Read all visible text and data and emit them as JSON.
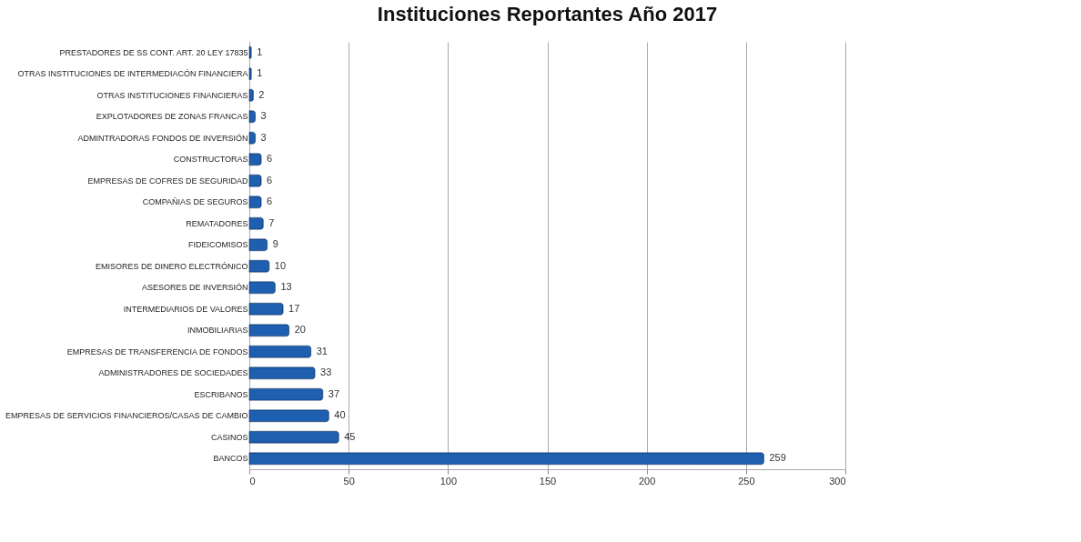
{
  "chart_data": {
    "type": "bar",
    "orientation": "horizontal",
    "title": "Instituciones Reportantes Año 2017",
    "categories": [
      "PRESTADORES DE SS CONT. ART. 20 LEY 17835",
      "OTRAS INSTITUCIONES DE INTERMEDIACÓN FINANCIERA",
      "OTRAS INSTITUCIONES FINANCIERAS",
      "EXPLOTADORES DE ZONAS FRANCAS",
      "ADMINTRADORAS FONDOS DE INVERSIÓN",
      "CONSTRUCTORAS",
      "EMPRESAS DE COFRES DE SEGURIDAD",
      "COMPAÑIAS DE SEGUROS",
      "REMATADORES",
      "FIDEICOMISOS",
      "EMISORES DE DINERO ELECTRÓNICO",
      "ASESORES DE INVERSIÓN",
      "INTERMEDIARIOS DE VALORES",
      "INMOBILIARIAS",
      "EMPRESAS DE TRANSFERENCIA DE FONDOS",
      "ADMINISTRADORES DE SOCIEDADES",
      "ESCRIBANOS",
      "EMPRESAS DE SERVICIOS FINANCIEROS/CASAS DE CAMBIO",
      "CASINOS",
      "BANCOS"
    ],
    "values": [
      1,
      1,
      2,
      3,
      3,
      6,
      6,
      6,
      7,
      9,
      10,
      13,
      17,
      20,
      31,
      33,
      37,
      40,
      45,
      259
    ],
    "color": "#1f5fb0",
    "xlim": [
      0,
      300
    ],
    "xticks": [
      0,
      50,
      100,
      150,
      200,
      250,
      300
    ],
    "grid": "x",
    "data_labels": true
  }
}
